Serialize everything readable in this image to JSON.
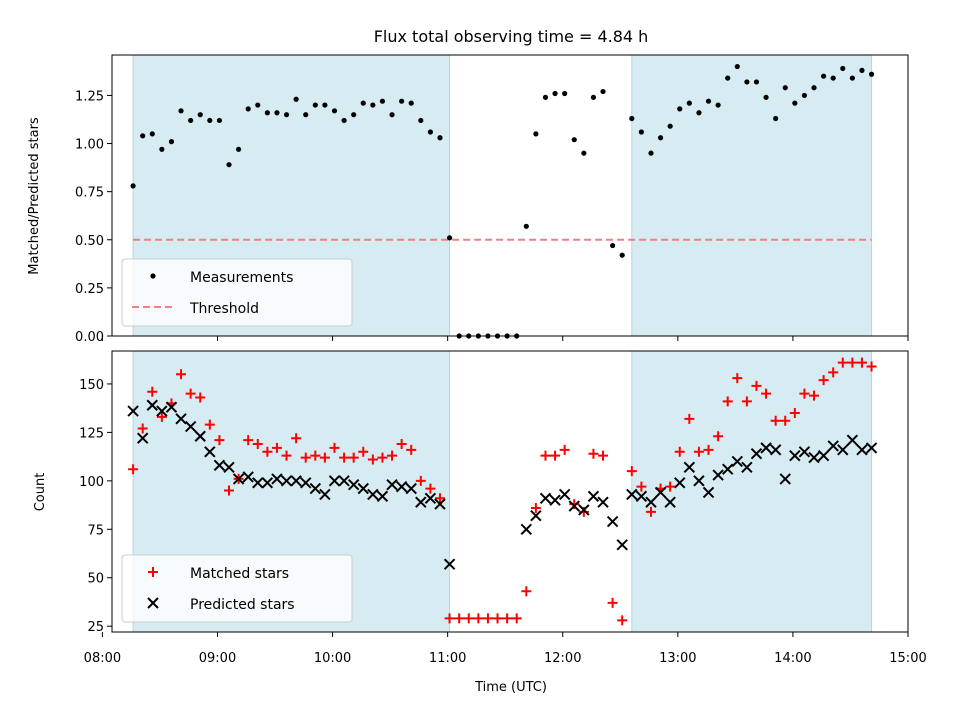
{
  "chart_data": [
    {
      "type": "scatter",
      "title": "Flux total observing time = 4.84 h",
      "ylabel": "Matched/Predicted stars",
      "xlabel": "",
      "xlim": [
        "08:05",
        "15:00"
      ],
      "ylim": [
        0,
        1.46
      ],
      "yticks": [
        0.0,
        0.25,
        0.5,
        0.75,
        1.0,
        1.25
      ],
      "ytick_labels": [
        "0.00",
        "0.25",
        "0.50",
        "0.75",
        "1.00",
        "1.25"
      ],
      "shaded_intervals": [
        [
          "08:16",
          "11:01"
        ],
        [
          "12:36",
          "14:41"
        ]
      ],
      "legend": {
        "position": "lower-left",
        "entries": [
          "Measurements",
          "Threshold"
        ]
      },
      "threshold": 0.5,
      "series": [
        {
          "name": "Measurements",
          "x": [
            "08:16",
            "08:21",
            "08:26",
            "08:31",
            "08:36",
            "08:41",
            "08:46",
            "08:51",
            "08:56",
            "09:01",
            "09:06",
            "09:11",
            "09:16",
            "09:21",
            "09:26",
            "09:31",
            "09:36",
            "09:41",
            "09:46",
            "09:51",
            "09:56",
            "10:01",
            "10:06",
            "10:11",
            "10:16",
            "10:21",
            "10:26",
            "10:31",
            "10:36",
            "10:41",
            "10:46",
            "10:51",
            "10:56",
            "11:01",
            "11:06",
            "11:11",
            "11:16",
            "11:21",
            "11:26",
            "11:31",
            "11:36",
            "11:41",
            "11:46",
            "11:51",
            "11:56",
            "12:01",
            "12:06",
            "12:11",
            "12:16",
            "12:21",
            "12:26",
            "12:31",
            "12:36",
            "12:41",
            "12:46",
            "12:51",
            "12:56",
            "13:01",
            "13:06",
            "13:11",
            "13:16",
            "13:21",
            "13:26",
            "13:31",
            "13:36",
            "13:41",
            "13:46",
            "13:51",
            "13:56",
            "14:01",
            "14:06",
            "14:11",
            "14:16",
            "14:21",
            "14:26",
            "14:31",
            "14:36",
            "14:41"
          ],
          "y": [
            0.78,
            1.04,
            1.05,
            0.97,
            1.01,
            1.17,
            1.12,
            1.15,
            1.12,
            1.12,
            0.89,
            0.97,
            1.18,
            1.2,
            1.16,
            1.16,
            1.15,
            1.23,
            1.15,
            1.2,
            1.2,
            1.17,
            1.12,
            1.15,
            1.21,
            1.2,
            1.22,
            1.15,
            1.22,
            1.21,
            1.12,
            1.06,
            1.03,
            0.51,
            0.0,
            0.0,
            0.0,
            0.0,
            0.0,
            0.0,
            0.0,
            0.57,
            1.05,
            1.24,
            1.26,
            1.26,
            1.02,
            0.95,
            1.24,
            1.27,
            0.47,
            0.42,
            1.13,
            1.06,
            0.95,
            1.03,
            1.09,
            1.18,
            1.21,
            1.16,
            1.22,
            1.2,
            1.34,
            1.4,
            1.32,
            1.32,
            1.24,
            1.13,
            1.29,
            1.21,
            1.25,
            1.29,
            1.35,
            1.34,
            1.39,
            1.34,
            1.38,
            1.36
          ]
        }
      ]
    },
    {
      "type": "scatter",
      "title": "",
      "ylabel": "Count",
      "xlabel": "Time (UTC)",
      "xlim": [
        "08:05",
        "15:00"
      ],
      "ylim": [
        22,
        167
      ],
      "yticks": [
        25,
        50,
        75,
        100,
        125,
        150
      ],
      "ytick_labels": [
        "25",
        "50",
        "75",
        "100",
        "125",
        "150"
      ],
      "xticks": [
        "08:00",
        "09:00",
        "10:00",
        "11:00",
        "12:00",
        "13:00",
        "14:00",
        "15:00"
      ],
      "xtick_labels": [
        "08:00",
        "09:00",
        "10:00",
        "11:00",
        "12:00",
        "13:00",
        "14:00",
        "15:00"
      ],
      "shaded_intervals": [
        [
          "08:16",
          "11:01"
        ],
        [
          "12:36",
          "14:41"
        ]
      ],
      "legend": {
        "position": "lower-left",
        "entries": [
          "Matched stars",
          "Predicted stars"
        ]
      },
      "series": [
        {
          "name": "Matched stars",
          "x": [
            "08:16",
            "08:21",
            "08:26",
            "08:31",
            "08:36",
            "08:41",
            "08:46",
            "08:51",
            "08:56",
            "09:01",
            "09:06",
            "09:11",
            "09:16",
            "09:21",
            "09:26",
            "09:31",
            "09:36",
            "09:41",
            "09:46",
            "09:51",
            "09:56",
            "10:01",
            "10:06",
            "10:11",
            "10:16",
            "10:21",
            "10:26",
            "10:31",
            "10:36",
            "10:41",
            "10:46",
            "10:51",
            "10:56",
            "11:01",
            "11:06",
            "11:11",
            "11:16",
            "11:21",
            "11:26",
            "11:31",
            "11:36",
            "11:41",
            "11:46",
            "11:51",
            "11:56",
            "12:01",
            "12:06",
            "12:11",
            "12:16",
            "12:21",
            "12:26",
            "12:31",
            "12:36",
            "12:41",
            "12:46",
            "12:51",
            "12:56",
            "13:01",
            "13:06",
            "13:11",
            "13:16",
            "13:21",
            "13:26",
            "13:31",
            "13:36",
            "13:41",
            "13:46",
            "13:51",
            "13:56",
            "14:01",
            "14:06",
            "14:11",
            "14:16",
            "14:21",
            "14:26",
            "14:31",
            "14:36",
            "14:41"
          ],
          "y": [
            106,
            127,
            146,
            133,
            140,
            155,
            145,
            143,
            129,
            121,
            95,
            101,
            121,
            119,
            115,
            117,
            113,
            122,
            112,
            113,
            112,
            117,
            112,
            112,
            115,
            111,
            112,
            113,
            119,
            116,
            100,
            96,
            91,
            29,
            29,
            29,
            29,
            29,
            29,
            29,
            29,
            43,
            86,
            113,
            113,
            116,
            88,
            84,
            114,
            113,
            37,
            28,
            105,
            97,
            84,
            96,
            97,
            115,
            132,
            115,
            116,
            123,
            141,
            153,
            141,
            149,
            145,
            131,
            131,
            135,
            145,
            144,
            152,
            156,
            161,
            161,
            161,
            159
          ]
        },
        {
          "name": "Predicted stars",
          "x": [
            "08:16",
            "08:21",
            "08:26",
            "08:31",
            "08:36",
            "08:41",
            "08:46",
            "08:51",
            "08:56",
            "09:01",
            "09:06",
            "09:11",
            "09:16",
            "09:21",
            "09:26",
            "09:31",
            "09:36",
            "09:41",
            "09:46",
            "09:51",
            "09:56",
            "10:01",
            "10:06",
            "10:11",
            "10:16",
            "10:21",
            "10:26",
            "10:31",
            "10:36",
            "10:41",
            "10:46",
            "10:51",
            "10:56",
            "11:01",
            "11:41",
            "11:46",
            "11:51",
            "11:56",
            "12:01",
            "12:06",
            "12:11",
            "12:16",
            "12:21",
            "12:26",
            "12:31",
            "12:36",
            "12:41",
            "12:46",
            "12:51",
            "12:56",
            "13:01",
            "13:06",
            "13:11",
            "13:16",
            "13:21",
            "13:26",
            "13:31",
            "13:36",
            "13:41",
            "13:46",
            "13:51",
            "13:56",
            "14:01",
            "14:06",
            "14:11",
            "14:16",
            "14:21",
            "14:26",
            "14:31",
            "14:36",
            "14:41"
          ],
          "y": [
            136,
            122,
            139,
            136,
            138,
            132,
            128,
            123,
            115,
            108,
            107,
            101,
            102,
            99,
            99,
            101,
            100,
            100,
            99,
            96,
            93,
            100,
            100,
            98,
            96,
            93,
            92,
            98,
            97,
            96,
            89,
            91,
            88,
            57,
            75,
            82,
            91,
            90,
            93,
            87,
            85,
            92,
            89,
            79,
            67,
            93,
            92,
            89,
            94,
            89,
            99,
            107,
            100,
            94,
            103,
            106,
            110,
            107,
            114,
            117,
            116,
            101,
            113,
            115,
            112,
            113,
            118,
            116,
            121,
            116,
            117
          ]
        }
      ]
    }
  ]
}
